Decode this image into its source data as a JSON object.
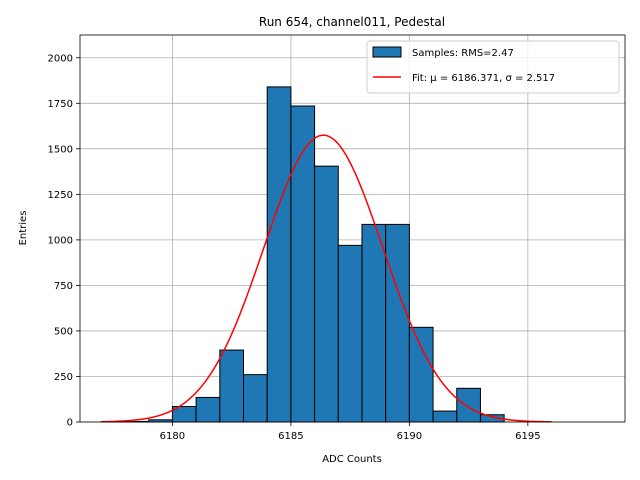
{
  "chart_data": {
    "type": "bar",
    "title": "Run 654, channel011, Pedestal",
    "xlabel": "ADC Counts",
    "ylabel": "Entries",
    "xlim": [
      6176.1,
      6199.1
    ],
    "ylim": [
      0,
      2125
    ],
    "xticks": [
      6180,
      6185,
      6190,
      6195
    ],
    "yticks": [
      0,
      250,
      500,
      750,
      1000,
      1250,
      1500,
      1750,
      2000
    ],
    "grid": true,
    "legend_position": "top-right",
    "colors": {
      "bar_fill": "#1f77b4",
      "bar_edge": "#000000",
      "fit_line": "#ff0000",
      "grid": "#b0b0b0"
    },
    "histogram": {
      "name": "Samples: RMS=2.47",
      "bin_start": 6177,
      "bin_width": 1,
      "counts": [
        2,
        3,
        12,
        85,
        135,
        395,
        260,
        1840,
        1735,
        1405,
        970,
        1085,
        1085,
        520,
        60,
        185,
        40
      ]
    },
    "fit": {
      "name": "Fit: μ = 6186.371, σ = 2.517",
      "mu": 6186.371,
      "sigma": 2.517,
      "amplitude": 1575,
      "x_range": [
        6177,
        6196
      ]
    }
  }
}
